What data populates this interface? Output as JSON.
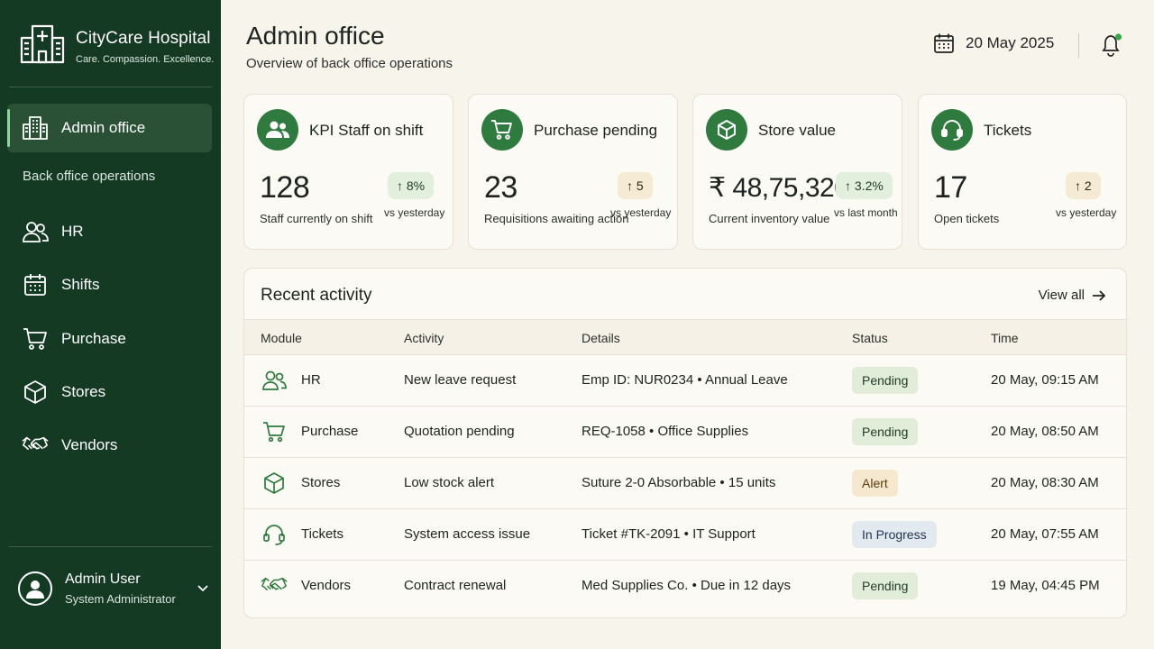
{
  "brand": {
    "name": "CityCare Hospital",
    "tagline": "Care. Compassion. Excellence."
  },
  "nav": {
    "active": {
      "label": "Admin office",
      "icon": "building-icon"
    },
    "section_label": "Back office operations",
    "items": [
      {
        "label": "HR",
        "icon": "users-icon"
      },
      {
        "label": "Shifts",
        "icon": "calendar-icon"
      },
      {
        "label": "Purchase",
        "icon": "cart-icon"
      },
      {
        "label": "Stores",
        "icon": "box-icon"
      },
      {
        "label": "Vendors",
        "icon": "handshake-icon"
      }
    ]
  },
  "user": {
    "name": "Admin User",
    "role": "System Administrator"
  },
  "header": {
    "title": "Admin office",
    "subtitle": "Overview of back office operations",
    "date": "20 May 2025"
  },
  "kpis": [
    {
      "title": "KPI Staff on shift",
      "value": "128",
      "subtitle": "Staff currently on shift",
      "delta": "↑ 8%",
      "vs": "vs yesterday",
      "icon": "users-icon"
    },
    {
      "title": "Purchase pending",
      "value": "23",
      "subtitle": "Requisitions awaiting action",
      "delta": "↑ 5",
      "vs": "vs yesterday",
      "icon": "cart-icon"
    },
    {
      "title": "Store value",
      "value": "₹ 48,75,320",
      "subtitle": "Current inventory value",
      "delta": "↑ 3.2%",
      "vs": "vs last month",
      "icon": "box-icon"
    },
    {
      "title": "Tickets",
      "value": "17",
      "subtitle": "Open tickets",
      "delta": "↑ 2",
      "vs": "vs yesterday",
      "icon": "headset-icon"
    }
  ],
  "activity": {
    "title": "Recent activity",
    "view_all": "View all",
    "columns": [
      "Module",
      "Activity",
      "Details",
      "Status",
      "Time"
    ],
    "rows": [
      {
        "module": "HR",
        "activity": "New leave request",
        "details": "Emp ID: NUR0234 • Annual Leave",
        "status": "Pending",
        "time": "20 May, 09:15 AM"
      },
      {
        "module": "Purchase",
        "activity": "Quotation pending",
        "details": "REQ-1058 • Office Supplies",
        "status": "Pending",
        "time": "20 May, 08:50 AM"
      },
      {
        "module": "Stores",
        "activity": "Low stock alert",
        "details": "Suture 2-0 Absorbable • 15 units",
        "status": "Alert",
        "time": "20 May, 08:30 AM"
      },
      {
        "module": "Tickets",
        "activity": "System access issue",
        "details": "Ticket #TK-2091 • IT Support",
        "status": "In Progress",
        "time": "20 May, 07:55 AM"
      },
      {
        "module": "Vendors",
        "activity": "Contract renewal",
        "details": "Med Supplies Co. • Due in 12 days",
        "status": "Pending",
        "time": "19 May, 04:45 PM"
      }
    ]
  },
  "colors": {
    "sidebar": "#143a24",
    "accent": "#2f7a3f",
    "background": "#f7f4ec",
    "notification_dot": "#3aa34a"
  }
}
